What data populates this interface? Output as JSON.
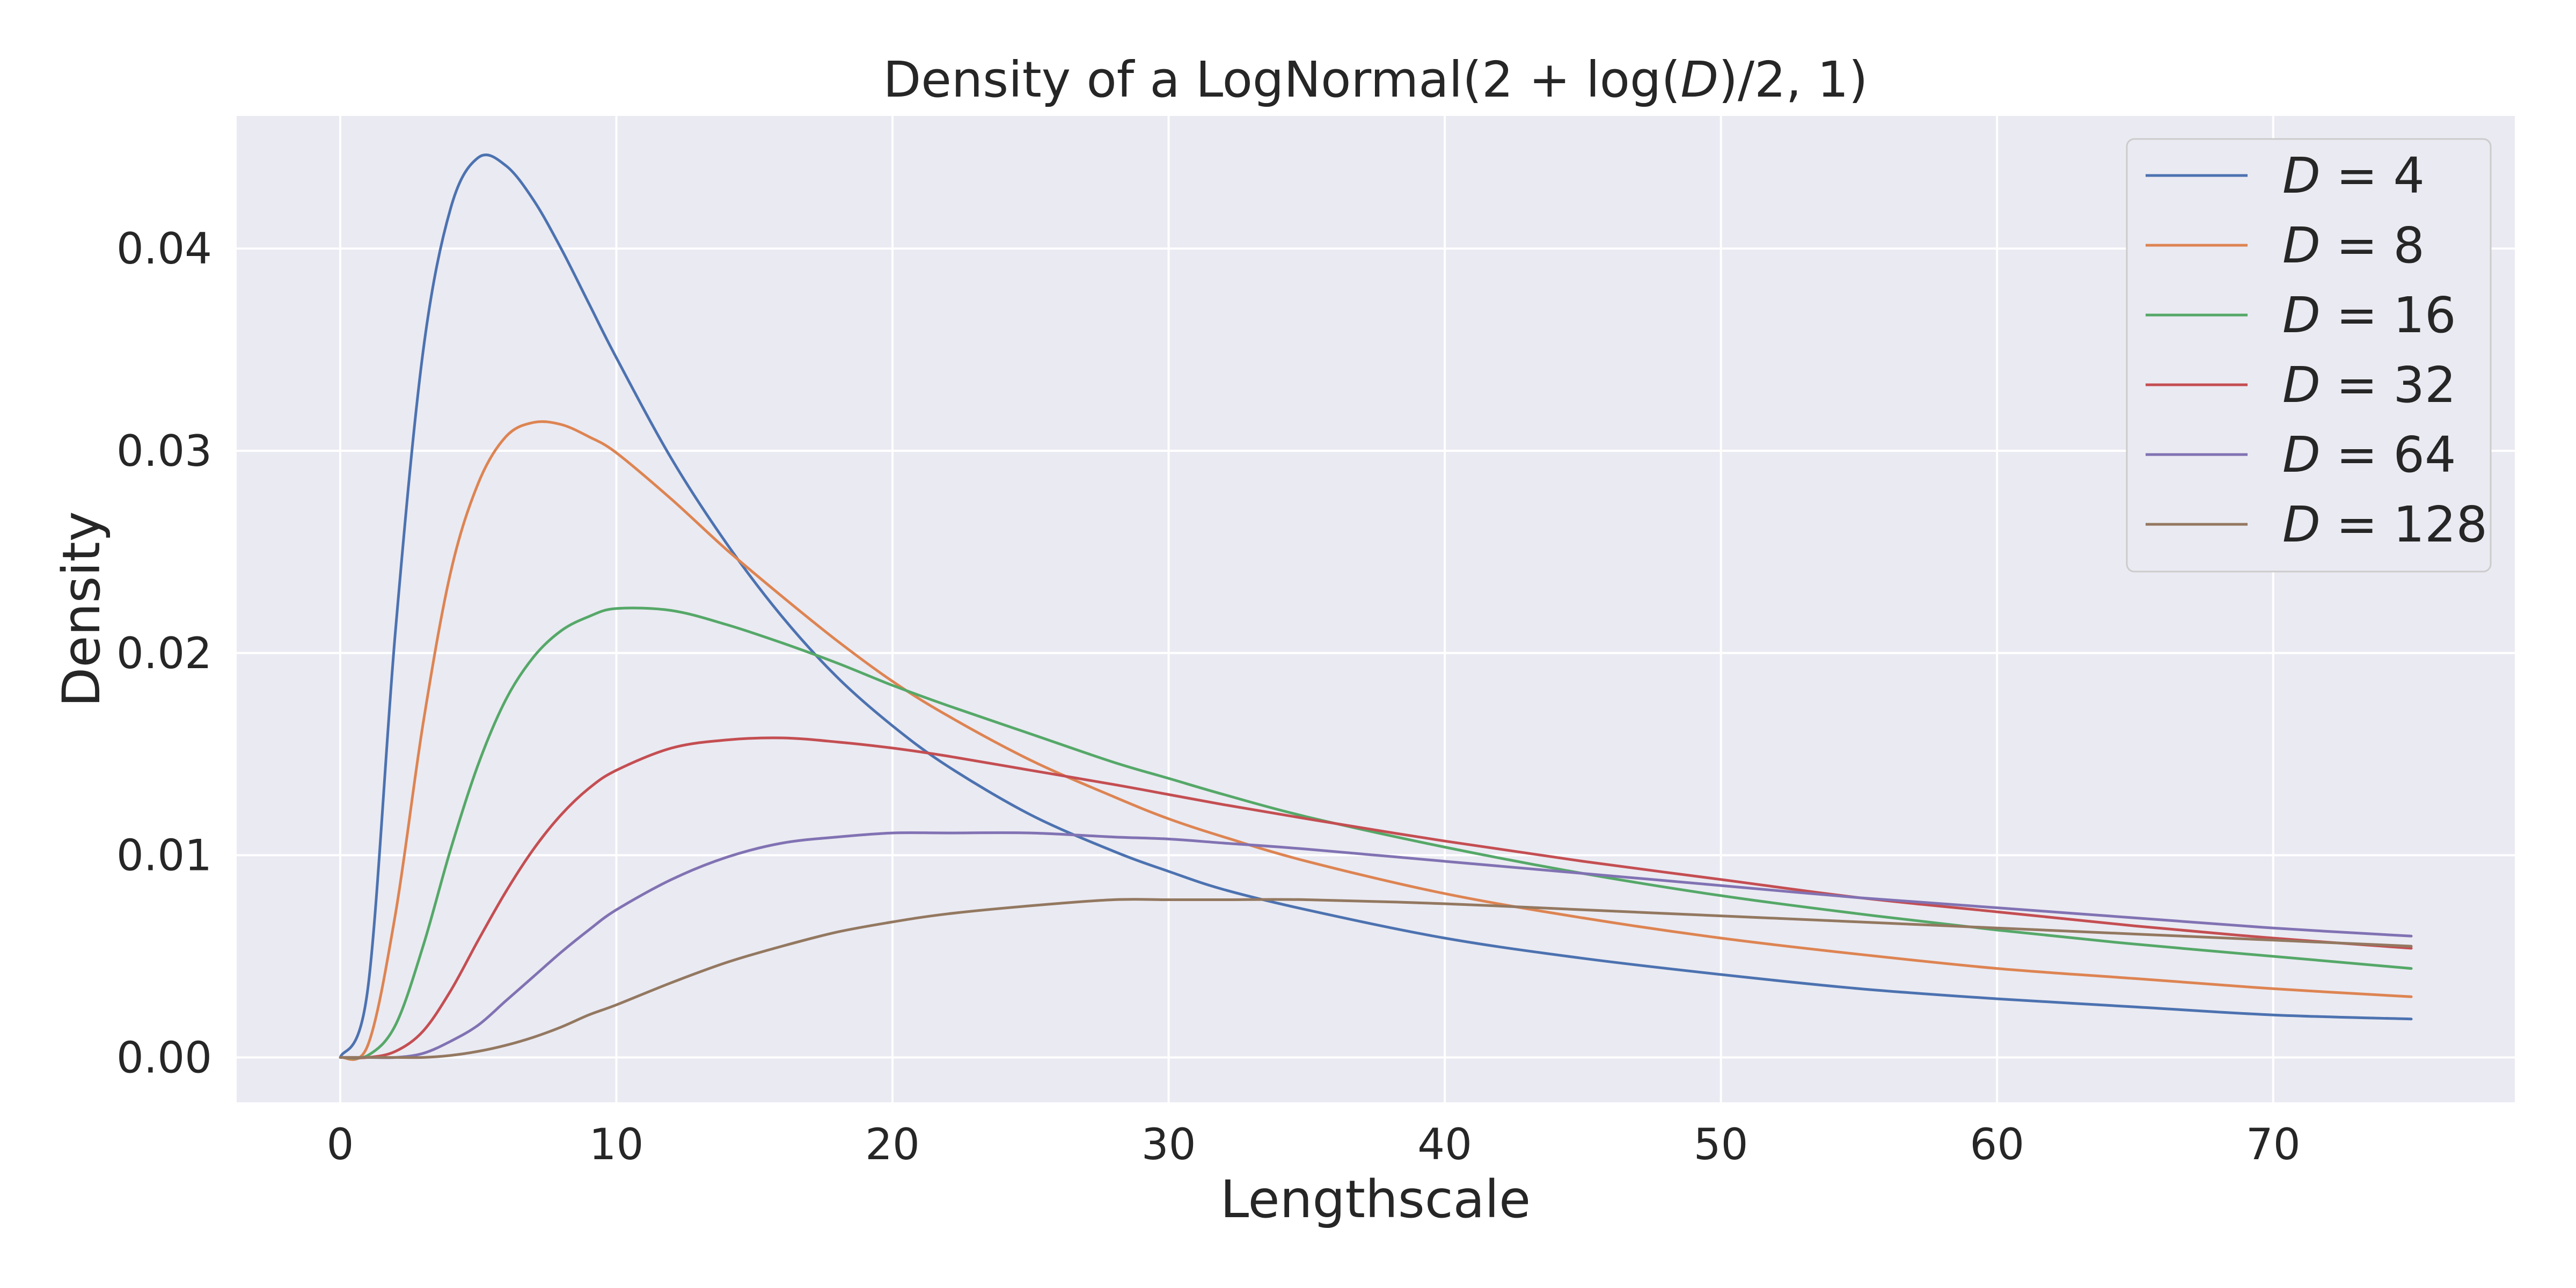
{
  "chart_data": {
    "type": "line",
    "title": "Density of a LogNormal(2 + log(D)/2, 1)",
    "xlabel": "Lengthscale",
    "ylabel": "Density",
    "xlim": [
      -3.75,
      78.75
    ],
    "ylim": [
      -0.00222,
      0.04656
    ],
    "xticks": [
      0,
      10,
      20,
      30,
      40,
      50,
      60,
      70
    ],
    "yticks": [
      0.0,
      0.01,
      0.02,
      0.03,
      0.04
    ],
    "xtick_labels": [
      "0",
      "10",
      "20",
      "30",
      "40",
      "50",
      "60",
      "70"
    ],
    "ytick_labels": [
      "0.00",
      "0.01",
      "0.02",
      "0.03",
      "0.04"
    ],
    "grid": true,
    "legend_position": "top-right",
    "x_range_plotted": [
      0,
      75
    ],
    "x": [
      0,
      1,
      2,
      3,
      4,
      5,
      6,
      7,
      8,
      9,
      10,
      12,
      14,
      16,
      18,
      20,
      22,
      25,
      28,
      30,
      32,
      35,
      40,
      45,
      50,
      55,
      60,
      65,
      70,
      75
    ],
    "series": [
      {
        "name": "D = 4",
        "color": "#4c72b0",
        "values": [
          0.0,
          0.0034,
          0.0211,
          0.0349,
          0.042,
          0.0445,
          0.0441,
          0.0424,
          0.04,
          0.0373,
          0.0346,
          0.0296,
          0.0254,
          0.0218,
          0.0188,
          0.0164,
          0.0144,
          0.012,
          0.0102,
          0.0092,
          0.0083,
          0.0073,
          0.0059,
          0.0049,
          0.0041,
          0.0034,
          0.0029,
          0.0025,
          0.0021,
          0.0019
        ]
      },
      {
        "name": "D = 8",
        "color": "#dd8452",
        "values": [
          0.0,
          0.0006,
          0.0071,
          0.0165,
          0.024,
          0.0284,
          0.0307,
          0.0314,
          0.0313,
          0.0307,
          0.0299,
          0.0276,
          0.0251,
          0.0228,
          0.0206,
          0.0186,
          0.0169,
          0.0147,
          0.0129,
          0.0118,
          0.0109,
          0.0097,
          0.0081,
          0.0069,
          0.0059,
          0.0051,
          0.0044,
          0.0039,
          0.0034,
          0.003
        ]
      },
      {
        "name": "D = 16",
        "color": "#55a868",
        "values": [
          0.0,
          0.0001,
          0.0016,
          0.0055,
          0.0103,
          0.0145,
          0.0177,
          0.0198,
          0.0211,
          0.0218,
          0.0222,
          0.0221,
          0.0214,
          0.0205,
          0.0195,
          0.0184,
          0.0174,
          0.016,
          0.0146,
          0.0138,
          0.013,
          0.0119,
          0.0104,
          0.0091,
          0.008,
          0.0071,
          0.0063,
          0.0056,
          0.005,
          0.0044
        ]
      },
      {
        "name": "D = 32",
        "color": "#c44e52",
        "values": [
          0.0,
          0.0,
          0.0003,
          0.0013,
          0.0033,
          0.0058,
          0.0082,
          0.0103,
          0.012,
          0.0133,
          0.0142,
          0.0153,
          0.0157,
          0.0158,
          0.0156,
          0.0153,
          0.0149,
          0.0142,
          0.0135,
          0.013,
          0.0125,
          0.0118,
          0.0107,
          0.0097,
          0.0088,
          0.0079,
          0.0072,
          0.0065,
          0.0059,
          0.0054
        ]
      },
      {
        "name": "D = 64",
        "color": "#8172b3",
        "values": [
          0.0,
          0.0,
          0.0,
          0.0002,
          0.0008,
          0.0016,
          0.0028,
          0.004,
          0.0052,
          0.0063,
          0.0073,
          0.0088,
          0.0099,
          0.0106,
          0.0109,
          0.0111,
          0.0111,
          0.0111,
          0.0109,
          0.0108,
          0.0106,
          0.0103,
          0.0097,
          0.0091,
          0.0085,
          0.0079,
          0.0074,
          0.0069,
          0.0064,
          0.006
        ]
      },
      {
        "name": "D = 128",
        "color": "#937860",
        "values": [
          0.0,
          0.0,
          0.0,
          0.0,
          0.0001,
          0.0003,
          0.0006,
          0.001,
          0.0015,
          0.0021,
          0.0026,
          0.0037,
          0.0047,
          0.0055,
          0.0062,
          0.0067,
          0.0071,
          0.0075,
          0.0078,
          0.0078,
          0.0078,
          0.0078,
          0.0076,
          0.0073,
          0.007,
          0.0067,
          0.0064,
          0.0061,
          0.0058,
          0.0055
        ]
      }
    ]
  },
  "legend": {
    "items": [
      {
        "var": "D",
        "eq": " = ",
        "num": "4"
      },
      {
        "var": "D",
        "eq": " = ",
        "num": "8"
      },
      {
        "var": "D",
        "eq": " = ",
        "num": "16"
      },
      {
        "var": "D",
        "eq": " = ",
        "num": "32"
      },
      {
        "var": "D",
        "eq": " = ",
        "num": "64"
      },
      {
        "var": "D",
        "eq": " = ",
        "num": "128"
      }
    ]
  },
  "title_parts": {
    "prefix": "Density of a LogNormal(2 + log(",
    "var": "D",
    "suffix": ")/2, 1)"
  },
  "colors": {
    "plot_background": "#eaeaf2",
    "grid": "#ffffff",
    "text": "#262626"
  }
}
